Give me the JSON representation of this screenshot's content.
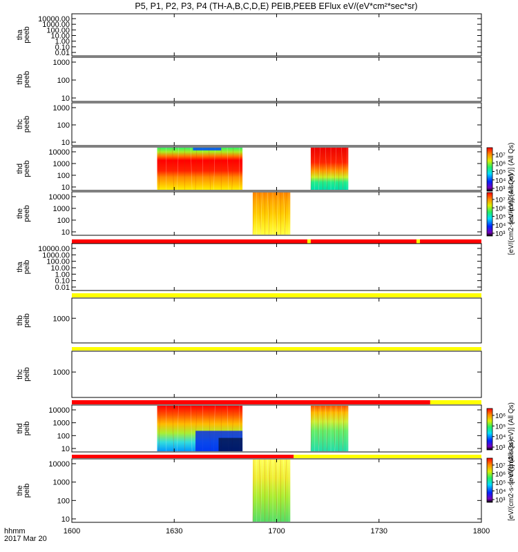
{
  "title": "P5, P1, P2, P3, P4 (TH-A,B,C,D,E) PEIB,PEEB EFlux eV/(eV*cm²*sec*sr)",
  "footer": {
    "time_label": "hhmm",
    "date_label": "2017 Mar 20"
  },
  "colors": {
    "red": "#ff0000",
    "yellow": "#ffff00",
    "orange": "#ff8800",
    "green": "#33dd66",
    "cyan": "#00ffff",
    "blue": "#0033ff",
    "purple": "#8800cc",
    "black": "#000000"
  },
  "chart_data": {
    "type": "heatmap",
    "x_range": [
      "1600",
      "1800"
    ],
    "x_ticks": [
      "1600",
      "1630",
      "1700",
      "1730",
      "1800"
    ],
    "panels": [
      {
        "ylabel": [
          "tha",
          "peeb"
        ],
        "yticks": [
          "10000.00",
          "1000.00",
          "100.00",
          "10.00",
          "1.00",
          "0.10",
          "0.01"
        ],
        "blocks": []
      },
      {
        "ylabel": [
          "thb",
          "peeb"
        ],
        "yticks": [
          "1000",
          "100",
          "10"
        ],
        "blocks": []
      },
      {
        "ylabel": [
          "thc",
          "peeb"
        ],
        "yticks": [
          "1000",
          "100",
          "10"
        ],
        "blocks": []
      },
      {
        "ylabel": [
          "thd",
          "peeb"
        ],
        "yticks": [
          "10000",
          "1000",
          "100",
          "10"
        ],
        "blocks": [
          {
            "start": "1625",
            "end": "1650",
            "style": "thd-e-1"
          },
          {
            "start": "1710",
            "end": "1721",
            "style": "thd-e-2"
          }
        ]
      },
      {
        "ylabel": [
          "the",
          "peeb"
        ],
        "yticks": [
          "10000",
          "1000",
          "100",
          "10"
        ],
        "blocks": [
          {
            "start": "1653",
            "end": "1704",
            "style": "the-e"
          }
        ]
      },
      {
        "ylabel": [
          "tha",
          "peib"
        ],
        "yticks": [
          "10000.00",
          "1000.00",
          "100.00",
          "10.00",
          "1.00",
          "0.10",
          "0.01"
        ],
        "blocks": []
      },
      {
        "ylabel": [
          "thb",
          "peib"
        ],
        "yticks": [
          "1000"
        ],
        "blocks": []
      },
      {
        "ylabel": [
          "thc",
          "peib"
        ],
        "yticks": [
          "1000"
        ],
        "blocks": []
      },
      {
        "ylabel": [
          "thd",
          "peib"
        ],
        "yticks": [
          "10000",
          "1000",
          "100",
          "10"
        ],
        "blocks": [
          {
            "start": "1625",
            "end": "1650",
            "style": "thd-i-1"
          },
          {
            "start": "1710",
            "end": "1721",
            "style": "thd-i-2"
          }
        ]
      },
      {
        "ylabel": [
          "the",
          "peib"
        ],
        "yticks": [
          "10000",
          "1000",
          "100",
          "10"
        ],
        "blocks": [
          {
            "start": "1653",
            "end": "1704",
            "style": "the-i"
          }
        ]
      }
    ],
    "status_bars": [
      {
        "segments": [
          {
            "start": "1600",
            "end": "1709",
            "color": "red"
          },
          {
            "start": "1709",
            "end": "1710",
            "color": "yellow"
          },
          {
            "start": "1710",
            "end": "1741",
            "color": "red"
          },
          {
            "start": "1741",
            "end": "1742",
            "color": "yellow"
          },
          {
            "start": "1742",
            "end": "1800",
            "color": "red"
          }
        ]
      },
      {
        "segments": [
          {
            "start": "1600",
            "end": "1800",
            "color": "yellow"
          }
        ]
      },
      {
        "segments": [
          {
            "start": "1600",
            "end": "1800",
            "color": "yellow"
          }
        ]
      },
      {
        "segments": [
          {
            "start": "1600",
            "end": "1745",
            "color": "red"
          },
          {
            "start": "1745",
            "end": "1800",
            "color": "yellow"
          }
        ]
      },
      {
        "segments": [
          {
            "start": "1600",
            "end": "1705",
            "color": "red"
          },
          {
            "start": "1705",
            "end": "1800",
            "color": "yellow"
          }
        ]
      }
    ],
    "colorbars": [
      {
        "label": "[eV/(cm2-s-sr-eV)]  (All Qs)",
        "ticks": [
          "10⁷",
          "10⁶",
          "10⁵",
          "10⁴",
          "10³"
        ]
      },
      {
        "label": "[eV/(cm2-s-sr-eV)]  (All Qs)",
        "ticks": [
          "10⁷",
          "10⁶",
          "10⁵",
          "10⁴",
          "10³"
        ]
      },
      {
        "label": "[eV/(cm2-s-sr-eV)]  (All Qs)",
        "ticks": [
          "10⁶",
          "10⁵",
          "10⁴",
          "10³"
        ]
      },
      {
        "label": "[eV/(cm2-s-sr-eV)]  (All Qs)",
        "ticks": [
          "10⁷",
          "10⁶",
          "10⁵",
          "10⁴",
          "10³"
        ]
      }
    ]
  }
}
